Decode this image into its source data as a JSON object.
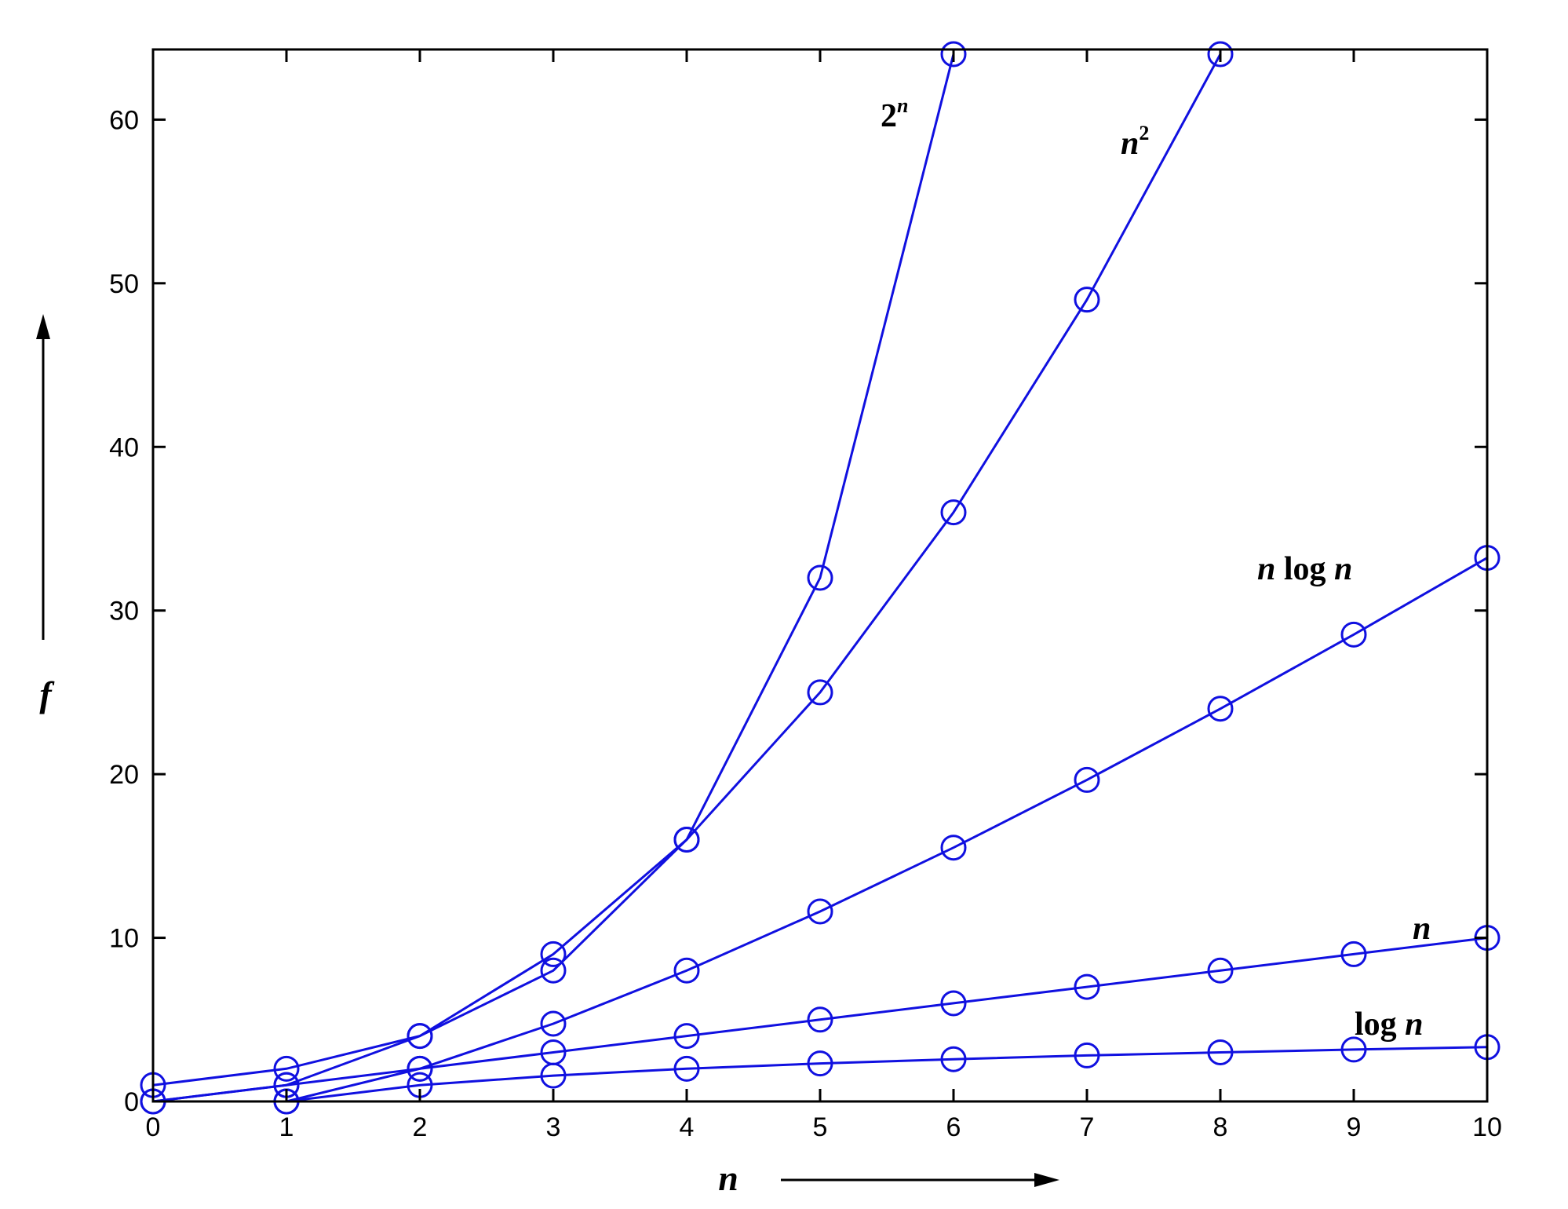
{
  "chart_data": {
    "type": "line",
    "title": "",
    "xlabel": "n",
    "ylabel": "f",
    "xlim": [
      0,
      10
    ],
    "ylim": [
      0,
      64
    ],
    "xticks": [
      0,
      1,
      2,
      3,
      4,
      5,
      6,
      7,
      8,
      9,
      10
    ],
    "yticks": [
      0,
      10,
      20,
      30,
      40,
      50,
      60
    ],
    "grid": false,
    "line_color": "#1010e0",
    "series": [
      {
        "key": "log_n",
        "label_main": "log ",
        "label_var": "n",
        "x": [
          1,
          2,
          3,
          4,
          5,
          6,
          7,
          8,
          9,
          10
        ],
        "y": [
          0,
          1,
          1.58,
          2,
          2.32,
          2.58,
          2.81,
          3,
          3.17,
          3.32
        ]
      },
      {
        "key": "n",
        "label_main": "",
        "label_var": "n",
        "x": [
          0,
          1,
          2,
          3,
          4,
          5,
          6,
          7,
          8,
          9,
          10
        ],
        "y": [
          0,
          1,
          2,
          3,
          4,
          5,
          6,
          7,
          8,
          9,
          10
        ]
      },
      {
        "key": "n_log_n",
        "label_main": "n log ",
        "label_var": "n",
        "x": [
          1,
          2,
          3,
          4,
          5,
          6,
          7,
          8,
          9,
          10
        ],
        "y": [
          0,
          2,
          4.75,
          8,
          11.61,
          15.51,
          19.65,
          24,
          28.53,
          33.22
        ]
      },
      {
        "key": "n_squared",
        "label_main": "n",
        "label_sup": "2",
        "x": [
          0,
          1,
          2,
          3,
          4,
          5,
          6,
          7,
          8
        ],
        "y": [
          0,
          1,
          4,
          9,
          16,
          25,
          36,
          49,
          64
        ]
      },
      {
        "key": "two_n",
        "label_main": "2",
        "label_sup": "n",
        "x": [
          0,
          1,
          2,
          3,
          4,
          5,
          6
        ],
        "y": [
          1,
          2,
          4,
          8,
          16,
          32,
          64
        ]
      }
    ]
  }
}
